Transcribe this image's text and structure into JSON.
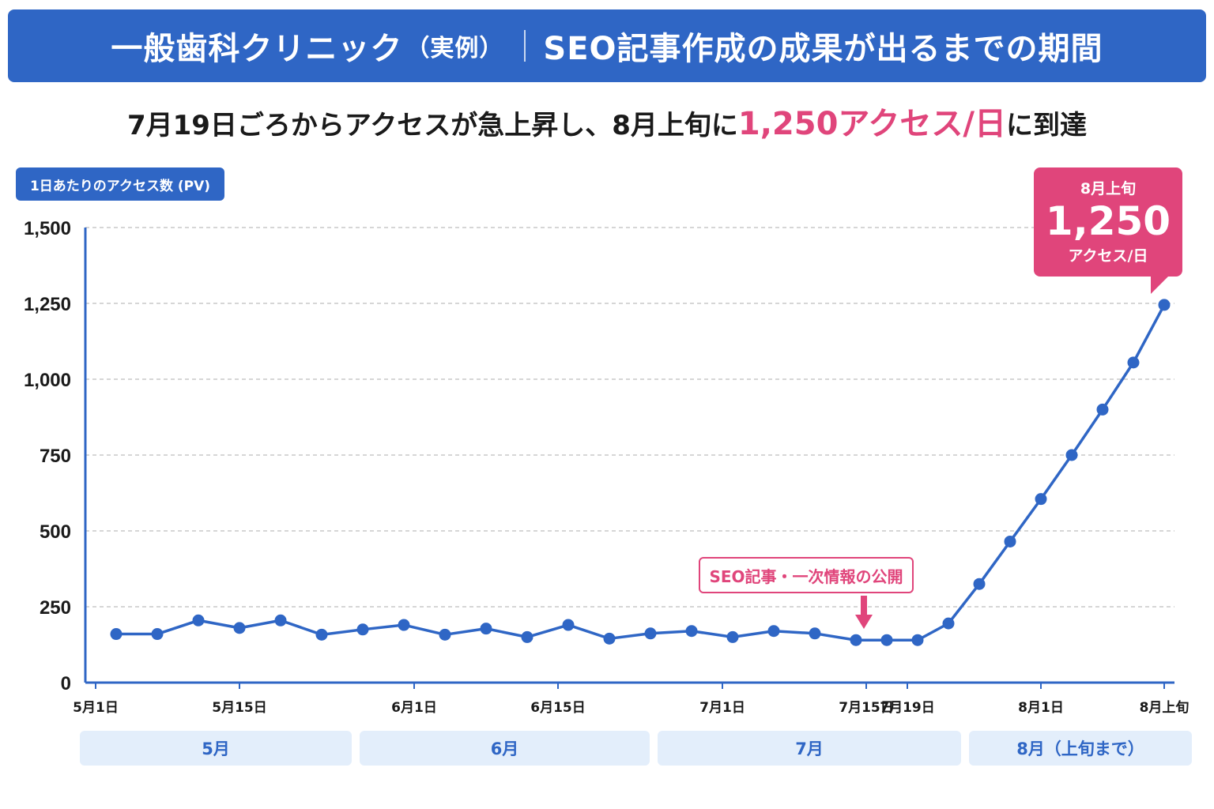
{
  "header": {
    "title_main": "一般歯科クリニック",
    "title_sub": "（実例）",
    "title_topic": "SEO記事作成の成果が出るまでの期間"
  },
  "headline": {
    "before": "7月19日ごろからアクセスが急上昇し、8月上旬に",
    "highlight": "1,250アクセス/日",
    "after": "に到達"
  },
  "callout": {
    "period": "8月上旬",
    "value": "1,250",
    "unit": "アクセス/日"
  },
  "annotation": {
    "label": "SEO記事・一次情報の公開"
  },
  "month_bands": [
    "5月",
    "6月",
    "7月",
    "8月（上旬まで）"
  ],
  "colors": {
    "primary": "#2f66c5",
    "accent": "#e0457b",
    "band": "#e3eefb"
  },
  "chart_data": {
    "type": "line",
    "ylabel": "1日あたりのアクセス数 (PV)",
    "xlabel": "",
    "ylim": [
      0,
      1500
    ],
    "yticks": [
      0,
      250,
      500,
      750,
      1000,
      1250,
      1500
    ],
    "ytick_labels": [
      "0",
      "250",
      "500",
      "750",
      "1,000",
      "1,250",
      "1,500"
    ],
    "xticks": [
      {
        "x": 1,
        "label": "5月1日"
      },
      {
        "x": 15,
        "label": "5月15日"
      },
      {
        "x": 32,
        "label": "6月1日"
      },
      {
        "x": 46,
        "label": "6月15日"
      },
      {
        "x": 62,
        "label": "7月1日"
      },
      {
        "x": 76,
        "label": "7月15日"
      },
      {
        "x": 80,
        "label": "7月19日"
      },
      {
        "x": 93,
        "label": "8月1日"
      },
      {
        "x": 105,
        "label": "8月上旬"
      }
    ],
    "grid": true,
    "annotation_x": 78,
    "series": [
      {
        "x": [
          3,
          7,
          11,
          15,
          19,
          23,
          27,
          31,
          35,
          39,
          43,
          47,
          51,
          55,
          59,
          63,
          67,
          71,
          75,
          78,
          81,
          84,
          87,
          90,
          93,
          96,
          99,
          102,
          105
        ],
        "values": [
          160,
          160,
          205,
          180,
          205,
          158,
          175,
          190,
          158,
          178,
          150,
          190,
          145,
          162,
          170,
          150,
          170,
          162,
          140,
          140,
          140,
          195,
          325,
          465,
          605,
          750,
          900,
          1055,
          1245
        ]
      }
    ]
  }
}
